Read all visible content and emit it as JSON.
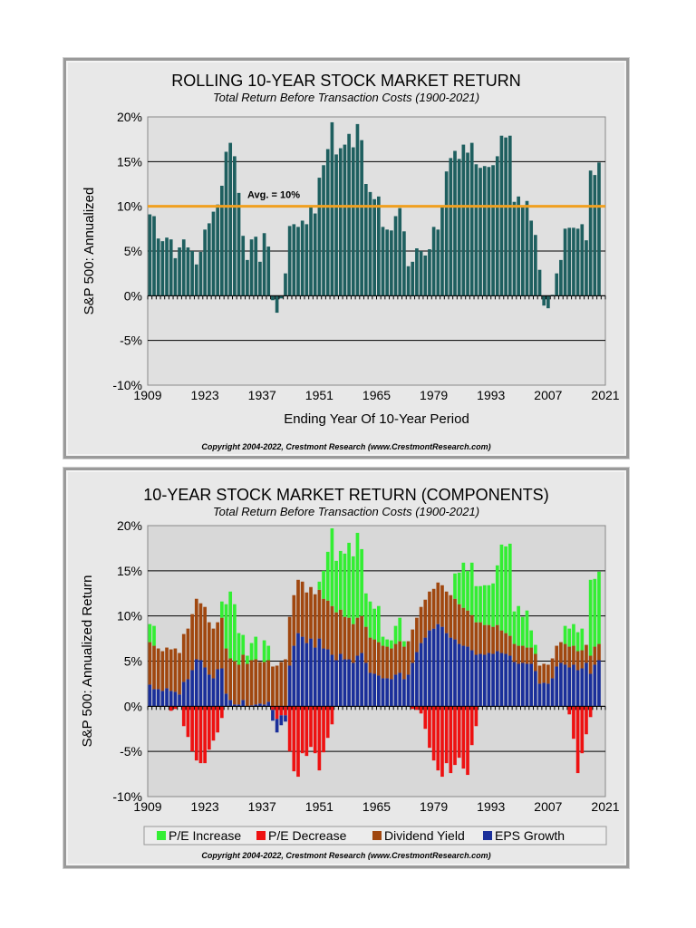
{
  "chart_data": [
    {
      "type": "bar",
      "title": "ROLLING 10-YEAR STOCK MARKET RETURN",
      "subtitle": "Total Return Before Transaction Costs (1900-2021)",
      "xlabel": "Ending Year Of 10-Year Period",
      "ylabel": "S&P 500: Annualized",
      "ylim": [
        -10,
        20
      ],
      "yticks": [
        "-10%",
        "-5%",
        "0%",
        "5%",
        "10%",
        "15%",
        "20%"
      ],
      "xticks": [
        "1909",
        "1923",
        "1937",
        "1951",
        "1965",
        "1979",
        "1993",
        "2007",
        "2021"
      ],
      "grid": true,
      "bar_color": "#1e5f5f",
      "avg_color": "#f0a020",
      "annotation": "Avg. = 10%",
      "average": 10,
      "x_start": 1909,
      "values": [
        9.1,
        8.9,
        6.4,
        6.1,
        6.5,
        6.3,
        4.2,
        5.4,
        6.3,
        5.4,
        5.0,
        3.5,
        4.9,
        7.4,
        8.1,
        9.4,
        10.2,
        12.3,
        16.1,
        17.1,
        15.6,
        11.5,
        6.7,
        4.0,
        6.3,
        6.6,
        3.8,
        7.0,
        5.5,
        -0.5,
        -1.9,
        -0.3,
        2.5,
        7.8,
        8.0,
        7.7,
        8.4,
        8.0,
        9.9,
        9.2,
        13.2,
        14.6,
        16.4,
        19.4,
        15.8,
        16.5,
        16.9,
        18.1,
        16.6,
        19.2,
        17.4,
        12.5,
        11.6,
        10.8,
        11.1,
        7.7,
        7.4,
        7.3,
        8.9,
        9.8,
        7.2,
        3.3,
        3.8,
        5.3,
        5.0,
        4.5,
        5.2,
        7.7,
        7.4,
        9.9,
        13.9,
        15.4,
        16.2,
        15.3,
        16.9,
        16.0,
        17.1,
        14.7,
        14.3,
        14.5,
        14.4,
        14.6,
        15.6,
        17.9,
        17.7,
        17.9,
        10.5,
        11.1,
        9.9,
        10.6,
        8.4,
        6.8,
        2.9,
        -1.1,
        -1.4,
        0.1,
        2.5,
        4.0,
        7.5,
        7.6,
        7.6,
        7.5,
        8.0,
        6.2,
        14.0,
        13.5,
        14.9,
        null
      ]
    },
    {
      "type": "bar",
      "stacked": true,
      "title": "10-YEAR STOCK MARKET RETURN (COMPONENTS)",
      "subtitle": "Total Return Before Transaction Costs (1900-2021)",
      "ylabel": "S&P 500: Annualized Return",
      "ylim": [
        -10,
        20
      ],
      "yticks": [
        "-10%",
        "-5%",
        "0%",
        "5%",
        "10%",
        "15%",
        "20%"
      ],
      "xticks": [
        "1909",
        "1923",
        "1937",
        "1951",
        "1965",
        "1979",
        "1993",
        "2007",
        "2021"
      ],
      "grid": true,
      "x_start": 1909,
      "legend_position": "bottom",
      "series": [
        {
          "name": "P/E Increase",
          "color": "#33ee33",
          "values": [
            2.0,
            2.2,
            0.0,
            0.0,
            0.0,
            0.0,
            0.0,
            0.0,
            0.0,
            0.0,
            0.0,
            0.0,
            0.0,
            0.0,
            0.0,
            0.0,
            0.0,
            1.8,
            4.9,
            7.4,
            6.3,
            3.5,
            2.2,
            0.9,
            1.9,
            2.5,
            0.0,
            2.4,
            1.6,
            0.0,
            0.0,
            0.0,
            0.0,
            0.0,
            0.0,
            0.0,
            0.0,
            0.0,
            0.0,
            0.0,
            0.9,
            3.1,
            5.4,
            8.6,
            5.7,
            6.5,
            7.0,
            8.3,
            7.5,
            9.4,
            7.4,
            3.7,
            4.0,
            3.4,
            4.0,
            1.0,
            0.8,
            0.9,
            2.0,
            2.6,
            0.6,
            0.0,
            0.0,
            0.0,
            0.0,
            0.0,
            0.0,
            0.0,
            0.0,
            0.0,
            0.0,
            0.0,
            2.8,
            3.5,
            5.0,
            4.4,
            5.8,
            4.0,
            4.0,
            4.4,
            4.4,
            4.8,
            6.6,
            9.5,
            9.6,
            10.2,
            3.6,
            4.4,
            3.2,
            4.1,
            1.9,
            1.0,
            0.0,
            0.0,
            0.0,
            0.0,
            0.0,
            0.0,
            2.0,
            2.0,
            2.4,
            2.1,
            2.4,
            0.0,
            8.4,
            7.5,
            8.0,
            0
          ]
        },
        {
          "name": "P/E Decrease",
          "color": "#ee1111",
          "values": [
            0,
            0,
            0,
            0,
            0,
            -0.5,
            -0.3,
            0,
            -2.2,
            -3.4,
            -5.0,
            -6.0,
            -6.3,
            -6.3,
            -4.8,
            -3.8,
            -2.9,
            -1.3,
            0,
            0,
            0,
            0,
            0,
            0,
            0,
            0,
            0,
            0,
            0,
            -0.4,
            -1.4,
            -1.0,
            -1.0,
            -5.0,
            -7.2,
            -7.8,
            -5.2,
            -5.5,
            -4.5,
            -5.2,
            -7.1,
            -5.1,
            -3.5,
            -2.0,
            0,
            0,
            0,
            0,
            0,
            0,
            0,
            0,
            0,
            0,
            0,
            0,
            0,
            0,
            0,
            0,
            0,
            0,
            -0.3,
            -0.4,
            -0.8,
            -2.5,
            -4.6,
            -6.0,
            -7.1,
            -7.8,
            -6.3,
            -7.4,
            -6.5,
            -5.7,
            -6.9,
            -7.6,
            -4.3,
            -2.2,
            0,
            0,
            0,
            0,
            0,
            0,
            0,
            0,
            0,
            0,
            0,
            0,
            0,
            0,
            0,
            0,
            0,
            0,
            0,
            0,
            0,
            -0.9,
            -3.6,
            -7.4,
            -5.2,
            -3.1,
            -1.2,
            0,
            0,
            0,
            0,
            0,
            0,
            0,
            0
          ]
        },
        {
          "name": "Dividend Yield",
          "color": "#a0470f",
          "values": [
            4.7,
            4.8,
            4.5,
            4.4,
            4.5,
            4.6,
            4.8,
            4.6,
            5.3,
            5.6,
            6.2,
            6.7,
            6.3,
            6.7,
            5.8,
            5.5,
            5.2,
            5.6,
            5.0,
            4.6,
            4.8,
            4.4,
            5.0,
            4.7,
            5.0,
            5.0,
            4.6,
            4.7,
            4.6,
            4.4,
            4.5,
            4.9,
            5.2,
            5.4,
            5.6,
            5.9,
            6.1,
            5.6,
            5.7,
            5.9,
            5.4,
            5.5,
            5.4,
            5.4,
            5.3,
            4.9,
            4.7,
            4.6,
            4.3,
            4.2,
            4.1,
            4.0,
            3.9,
            3.8,
            3.7,
            3.6,
            3.5,
            3.4,
            3.4,
            3.5,
            3.6,
            3.7,
            3.7,
            3.8,
            4.0,
            4.2,
            4.3,
            4.4,
            4.6,
            4.6,
            4.6,
            4.7,
            4.5,
            4.4,
            4.2,
            4.0,
            3.9,
            3.6,
            3.5,
            3.3,
            3.1,
            3.0,
            2.9,
            2.5,
            2.3,
            2.2,
            2.0,
            2.0,
            1.9,
            1.8,
            1.8,
            1.9,
            2.0,
            2.1,
            2.1,
            2.2,
            2.3,
            2.3,
            2.3,
            2.3,
            2.1,
            2.1,
            2.0,
            2.0,
            2.0,
            2.0,
            1.8,
            0
          ]
        },
        {
          "name": "EPS Growth",
          "color": "#1a2f9a",
          "values": [
            2.4,
            1.9,
            1.9,
            1.7,
            2.0,
            1.7,
            1.6,
            1.3,
            2.7,
            3.0,
            4.0,
            5.2,
            5.1,
            4.3,
            3.5,
            3.1,
            4.1,
            4.2,
            1.4,
            0.7,
            0.2,
            0.2,
            0.7,
            0.0,
            0.1,
            0.2,
            0.3,
            0.2,
            0.5,
            -1.2,
            -1.5,
            -1.1,
            -0.7,
            4.5,
            6.7,
            8.1,
            7.7,
            7.0,
            7.5,
            6.5,
            7.5,
            6.4,
            6.3,
            5.7,
            5.1,
            5.8,
            5.2,
            5.2,
            4.8,
            5.6,
            5.9,
            4.8,
            3.7,
            3.6,
            3.4,
            3.1,
            3.1,
            3.0,
            3.5,
            3.7,
            3.0,
            3.5,
            4.8,
            6.0,
            7.0,
            7.6,
            8.4,
            8.6,
            9.1,
            8.8,
            8.1,
            7.6,
            7.4,
            6.9,
            6.7,
            6.6,
            6.2,
            5.7,
            5.8,
            5.7,
            5.9,
            5.8,
            6.1,
            5.9,
            5.8,
            5.6,
            4.9,
            4.7,
            4.8,
            4.7,
            4.7,
            3.9,
            2.5,
            2.6,
            2.5,
            3.1,
            4.4,
            4.8,
            4.6,
            4.3,
            4.6,
            4.0,
            4.2,
            4.8,
            3.6,
            4.6,
            5.1,
            0
          ]
        }
      ]
    }
  ],
  "copyright": "Copyright 2004-2022, Crestmont Research (www.CrestmontResearch.com)"
}
